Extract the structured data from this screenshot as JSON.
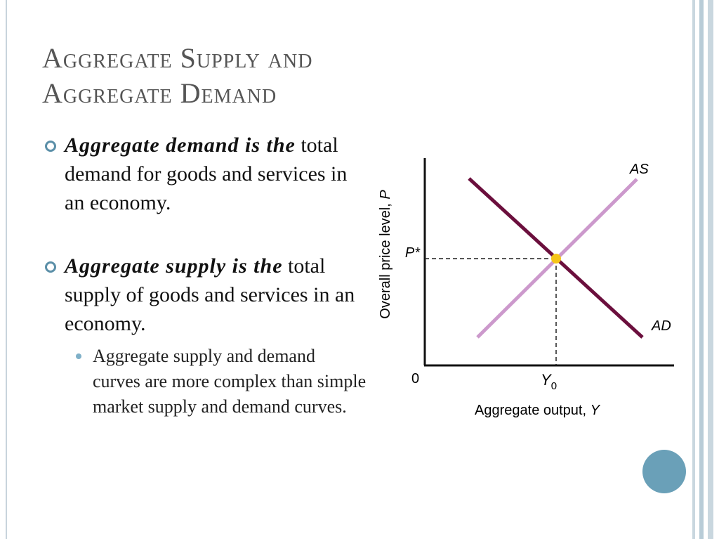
{
  "header": {
    "title_line1": "Aggregate Supply and",
    "title_line2": "Aggregate Demand"
  },
  "bullets": [
    {
      "lead": "Aggregate demand is the",
      "rest": " total demand for goods and services in an economy."
    },
    {
      "lead": "Aggregate supply is the",
      "rest": " total supply of goods and services in an economy."
    }
  ],
  "sub_bullets": [
    "Aggregate supply and demand curves are more complex than simple market supply and demand curves."
  ],
  "diagram": {
    "as_label": "AS",
    "ad_label": "AD",
    "p_star": "P*",
    "origin": "0",
    "y0_main": "Y",
    "y0_sub": "0",
    "x_axis_label": "Aggregate output, ",
    "x_axis_var": "Y",
    "y_axis_label": "Overall price level, ",
    "y_axis_var": "P"
  }
}
